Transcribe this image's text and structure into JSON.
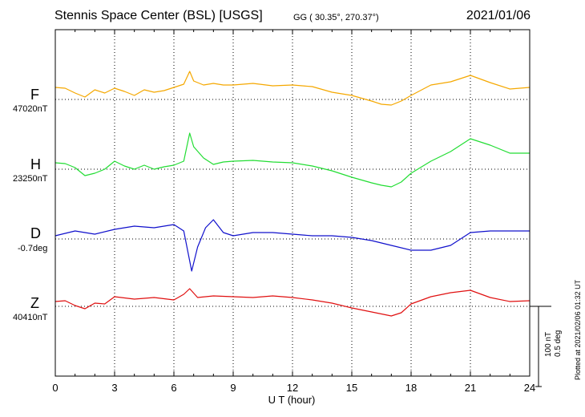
{
  "header": {
    "station": "Stennis Space Center (BSL)  [USGS]",
    "coords": "GG ( 30.35°, 270.37°)",
    "date": "2021/01/06"
  },
  "scale": {
    "nt": "100 nT",
    "deg": "0.5 deg"
  },
  "plotted_note": "Plotted at 2021/02/06 01:32 UT",
  "chart_data": {
    "type": "line",
    "title": "Stennis Space Center (BSL)  [USGS]",
    "xlabel": "U T (hour)",
    "ylabel": "",
    "x_ticks": [
      "0",
      "3",
      "6",
      "9",
      "12",
      "15",
      "18",
      "21",
      "24"
    ],
    "xlim": [
      0,
      24
    ],
    "grid": true,
    "scale_bar": {
      "nT": 100,
      "deg": 0.5
    },
    "series": [
      {
        "name": "F",
        "baseline": "47020nT",
        "color": "#f5a800",
        "unit": "nT",
        "x": [
          0,
          0.5,
          1,
          1.5,
          2,
          2.5,
          3,
          3.5,
          4,
          4.5,
          5,
          5.5,
          6,
          6.5,
          6.8,
          7,
          7.5,
          8,
          8.5,
          9,
          10,
          11,
          12,
          13,
          14,
          15,
          16,
          16.5,
          17,
          17.5,
          18,
          19,
          20,
          21,
          22,
          23,
          24
        ],
        "y": [
          15,
          14,
          8,
          3,
          12,
          8,
          14,
          10,
          5,
          12,
          9,
          11,
          15,
          19,
          35,
          23,
          18,
          20,
          18,
          18,
          20,
          17,
          18,
          16,
          9,
          5,
          -2,
          -6,
          -7,
          -2,
          5,
          18,
          22,
          30,
          21,
          13,
          15
        ]
      },
      {
        "name": "H",
        "baseline": "23250nT",
        "color": "#22dd33",
        "unit": "nT",
        "x": [
          0,
          0.5,
          1,
          1.5,
          2,
          2.5,
          3,
          3.5,
          4,
          4.5,
          5,
          5.5,
          6,
          6.5,
          6.8,
          7,
          7.5,
          8,
          8.5,
          9,
          10,
          11,
          12,
          13,
          14,
          15,
          16,
          16.5,
          17,
          17.5,
          18,
          19,
          20,
          21,
          22,
          23,
          24
        ],
        "y": [
          8,
          7,
          2,
          -8,
          -5,
          0,
          10,
          4,
          0,
          5,
          0,
          3,
          5,
          10,
          45,
          28,
          14,
          6,
          9,
          10,
          11,
          9,
          8,
          4,
          -2,
          -10,
          -17,
          -20,
          -22,
          -16,
          -5,
          10,
          22,
          38,
          30,
          20,
          20
        ]
      },
      {
        "name": "D",
        "baseline": "-0.7deg",
        "color": "#1010cc",
        "unit": "deg",
        "x": [
          0,
          1,
          2,
          3,
          4,
          5,
          6,
          6.5,
          6.9,
          7.2,
          7.6,
          8,
          8.5,
          9,
          10,
          11,
          12,
          13,
          14,
          15,
          16,
          17,
          18,
          19,
          20,
          21,
          22,
          23,
          24
        ],
        "y": [
          0.02,
          0.05,
          0.03,
          0.06,
          0.08,
          0.07,
          0.09,
          0.05,
          -0.2,
          -0.05,
          0.07,
          0.12,
          0.04,
          0.02,
          0.04,
          0.04,
          0.03,
          0.02,
          0.02,
          0.01,
          -0.01,
          -0.04,
          -0.07,
          -0.07,
          -0.04,
          0.04,
          0.05,
          0.05,
          0.05
        ]
      },
      {
        "name": "Z",
        "baseline": "40410nT",
        "color": "#e01010",
        "unit": "nT",
        "x": [
          0,
          0.5,
          1,
          1.5,
          2,
          2.5,
          3,
          4,
          5,
          6,
          6.5,
          6.8,
          7.2,
          8,
          9,
          10,
          11,
          12,
          13,
          14,
          15,
          16,
          17,
          17.5,
          18,
          19,
          20,
          21,
          22,
          23,
          24
        ],
        "y": [
          6,
          7,
          1,
          -3,
          4,
          3,
          12,
          9,
          11,
          8,
          15,
          22,
          11,
          13,
          12,
          11,
          13,
          11,
          8,
          4,
          -2,
          -7,
          -12,
          -8,
          3,
          12,
          17,
          20,
          11,
          6,
          7
        ]
      }
    ]
  }
}
